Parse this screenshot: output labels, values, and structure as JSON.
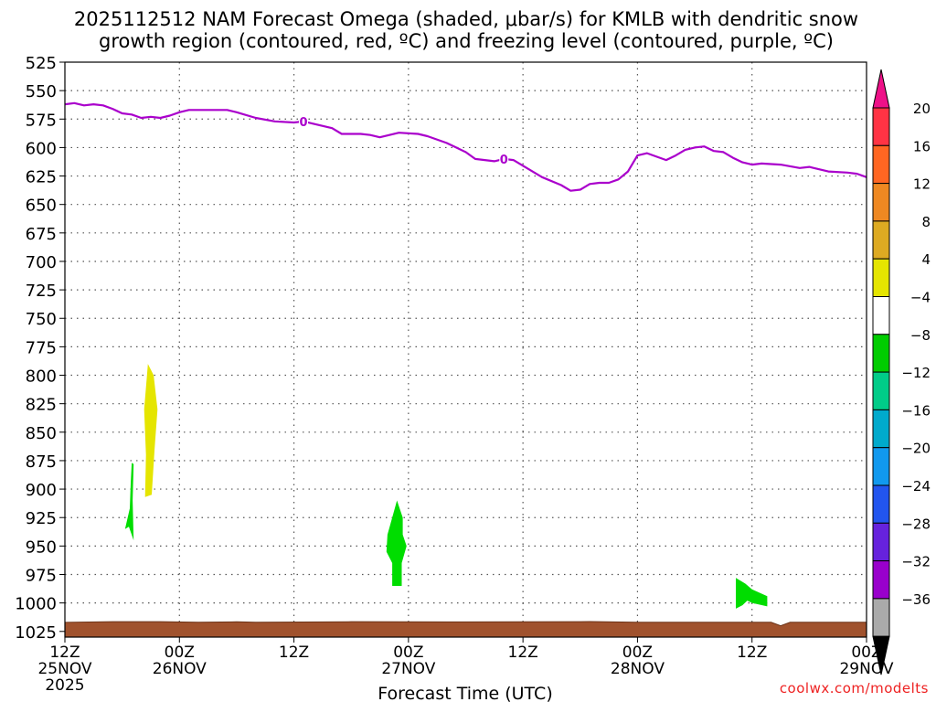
{
  "credit": "coolwx.com/modelts",
  "chart_data": {
    "type": "time-height",
    "title_lines": [
      "2025112512 NAM Forecast Omega (shaded, μbar/s) for KMLB with dendritic snow",
      "growth region (contoured, red, ºC) and freezing level (contoured, purple, ºC)"
    ],
    "xlabel": "Forecast Time (UTC)",
    "x_hours_range": [
      0,
      84
    ],
    "y_pressure_range": [
      525,
      1030
    ],
    "y_ticks": [
      525,
      550,
      575,
      600,
      625,
      650,
      675,
      700,
      725,
      750,
      775,
      800,
      825,
      850,
      875,
      900,
      925,
      950,
      975,
      1000,
      1025
    ],
    "x_ticks": [
      {
        "hour": 0,
        "label": "12Z",
        "date": "25NOV",
        "year": "2025"
      },
      {
        "hour": 12,
        "label": "00Z",
        "date": "26NOV",
        "year": ""
      },
      {
        "hour": 24,
        "label": "12Z",
        "date": "",
        "year": ""
      },
      {
        "hour": 36,
        "label": "00Z",
        "date": "27NOV",
        "year": ""
      },
      {
        "hour": 48,
        "label": "12Z",
        "date": "",
        "year": ""
      },
      {
        "hour": 60,
        "label": "00Z",
        "date": "28NOV",
        "year": ""
      },
      {
        "hour": 72,
        "label": "12Z",
        "date": "",
        "year": ""
      },
      {
        "hour": 84,
        "label": "00Z",
        "date": "29NOV",
        "year": ""
      }
    ],
    "grid": true,
    "freezing_level": {
      "color": "#aa00cc",
      "label": "0",
      "label_hours": [
        25,
        46
      ],
      "points": [
        [
          0,
          562
        ],
        [
          1,
          561
        ],
        [
          2,
          563
        ],
        [
          3,
          562
        ],
        [
          4,
          563
        ],
        [
          5,
          566
        ],
        [
          6,
          570
        ],
        [
          7,
          571
        ],
        [
          8,
          574
        ],
        [
          9,
          573
        ],
        [
          10,
          574
        ],
        [
          11,
          572
        ],
        [
          12,
          569
        ],
        [
          13,
          567
        ],
        [
          14,
          567
        ],
        [
          16,
          567
        ],
        [
          17,
          567
        ],
        [
          18,
          569
        ],
        [
          20,
          574
        ],
        [
          22,
          577
        ],
        [
          24,
          578
        ],
        [
          25,
          577
        ],
        [
          26,
          579
        ],
        [
          28,
          583
        ],
        [
          29,
          588
        ],
        [
          31,
          588
        ],
        [
          32,
          589
        ],
        [
          33,
          591
        ],
        [
          34,
          589
        ],
        [
          35,
          587
        ],
        [
          37,
          588
        ],
        [
          38,
          590
        ],
        [
          40,
          596
        ],
        [
          41,
          600
        ],
        [
          42,
          604
        ],
        [
          43,
          610
        ],
        [
          45,
          612
        ],
        [
          46,
          610
        ],
        [
          47,
          611
        ],
        [
          48,
          616
        ],
        [
          50,
          626
        ],
        [
          52,
          633
        ],
        [
          53,
          638
        ],
        [
          54,
          637
        ],
        [
          55,
          632
        ],
        [
          56,
          631
        ],
        [
          57,
          631
        ],
        [
          58,
          628
        ],
        [
          59,
          621
        ],
        [
          60,
          607
        ],
        [
          61,
          605
        ],
        [
          62,
          608
        ],
        [
          63,
          611
        ],
        [
          64,
          607
        ],
        [
          65,
          602
        ],
        [
          66,
          600
        ],
        [
          67,
          599
        ],
        [
          68,
          603
        ],
        [
          69,
          604
        ],
        [
          70,
          609
        ],
        [
          71,
          613
        ],
        [
          72,
          615
        ],
        [
          73,
          614
        ],
        [
          75,
          615
        ],
        [
          77,
          618
        ],
        [
          78,
          617
        ],
        [
          80,
          621
        ],
        [
          82,
          622
        ],
        [
          83,
          623
        ],
        [
          84,
          626
        ]
      ]
    },
    "omega_regions": [
      {
        "value_range": "4 to 8",
        "color": "#e5e500",
        "points": [
          [
            8.7,
            790
          ],
          [
            9.3,
            800
          ],
          [
            9.7,
            830
          ],
          [
            9.4,
            865
          ],
          [
            9.1,
            905
          ],
          [
            8.4,
            907
          ],
          [
            8.5,
            870
          ],
          [
            8.3,
            830
          ],
          [
            8.6,
            800
          ]
        ]
      },
      {
        "value_range": "-4 to -8",
        "color": "#00dd00",
        "points": [
          [
            7,
            877
          ],
          [
            7.2,
            878
          ],
          [
            7.1,
            910
          ],
          [
            7.2,
            945
          ],
          [
            6.7,
            933
          ],
          [
            6.3,
            935
          ],
          [
            6.8,
            917
          ],
          [
            6.9,
            895
          ]
        ]
      },
      {
        "value_range": "-4 to -8",
        "color": "#00dd00",
        "points": [
          [
            34.8,
            910
          ],
          [
            35.4,
            925
          ],
          [
            35.4,
            940
          ],
          [
            35.8,
            950
          ],
          [
            35.3,
            965
          ],
          [
            35.3,
            985
          ],
          [
            34.3,
            985
          ],
          [
            34.3,
            965
          ],
          [
            33.7,
            955
          ],
          [
            33.8,
            940
          ],
          [
            34.3,
            925
          ]
        ]
      },
      {
        "value_range": "-4 to -8",
        "color": "#00dd00",
        "points": [
          [
            70.3,
            978
          ],
          [
            71.3,
            983
          ],
          [
            72,
            988
          ],
          [
            73.6,
            994
          ],
          [
            73.6,
            1003
          ],
          [
            72,
            1000
          ],
          [
            71.5,
            998
          ],
          [
            71,
            1002
          ],
          [
            70.3,
            1005
          ]
        ]
      }
    ],
    "surface": {
      "color": "#a0522d",
      "top_pressure": 1017
    },
    "colorbar": {
      "labels": [
        "20",
        "16",
        "12",
        "8",
        "4",
        "−4",
        "−8",
        "−12",
        "−16",
        "−20",
        "−24",
        "−28",
        "−32",
        "−36"
      ],
      "colors": [
        "#ff3344",
        "#ff6622",
        "#ee8822",
        "#ddaa22",
        "#e5e500",
        "#ffffff",
        "#00cc00",
        "#00cc88",
        "#00aacc",
        "#1199ee",
        "#2255ee",
        "#6622dd",
        "#9900cc",
        "#aaaaaa"
      ],
      "top_arrow_color": "#ee1188",
      "bottom_arrow_color": "#000000"
    }
  }
}
